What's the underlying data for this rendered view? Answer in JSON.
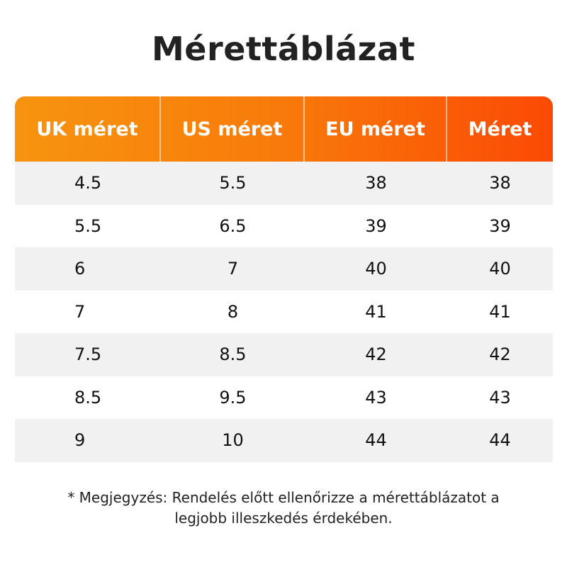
{
  "title": "Mérettáblázat",
  "table": {
    "headers": [
      "UK méret",
      "US méret",
      "EU méret",
      "Méret"
    ],
    "rows": [
      [
        "4.5",
        "5.5",
        "38",
        "38"
      ],
      [
        "5.5",
        "6.5",
        "39",
        "39"
      ],
      [
        "6",
        "7",
        "40",
        "40"
      ],
      [
        "7",
        "8",
        "41",
        "41"
      ],
      [
        "7.5",
        "8.5",
        "42",
        "42"
      ],
      [
        "8.5",
        "9.5",
        "43",
        "43"
      ],
      [
        "9",
        "10",
        "44",
        "44"
      ]
    ]
  },
  "note": {
    "line1": "* Megjegyzés: Rendelés előtt ellenőrizze a mérettáblázatot a",
    "line2": "legjobb illeszkedés érdekében."
  },
  "colors": {
    "header_start": "#f7940f",
    "header_end": "#fb4a04",
    "stripe": "#f1f1f1"
  }
}
